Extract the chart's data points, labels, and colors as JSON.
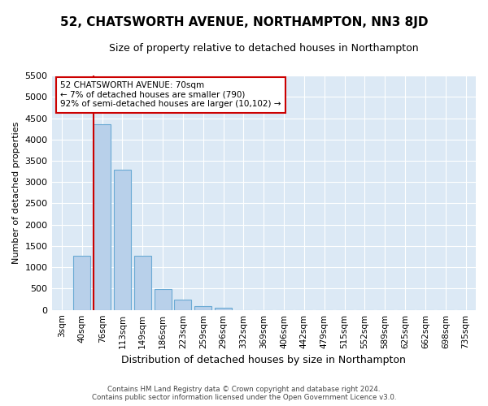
{
  "title": "52, CHATSWORTH AVENUE, NORTHAMPTON, NN3 8JD",
  "subtitle": "Size of property relative to detached houses in Northampton",
  "xlabel": "Distribution of detached houses by size in Northampton",
  "ylabel": "Number of detached properties",
  "bar_labels": [
    "3sqm",
    "40sqm",
    "76sqm",
    "113sqm",
    "149sqm",
    "186sqm",
    "223sqm",
    "259sqm",
    "296sqm",
    "332sqm",
    "369sqm",
    "406sqm",
    "442sqm",
    "479sqm",
    "515sqm",
    "552sqm",
    "589sqm",
    "625sqm",
    "662sqm",
    "698sqm",
    "735sqm"
  ],
  "bar_values": [
    0,
    1280,
    4350,
    3300,
    1270,
    480,
    240,
    90,
    55,
    0,
    0,
    0,
    0,
    0,
    0,
    0,
    0,
    0,
    0,
    0,
    0
  ],
  "bar_color": "#b8d0ea",
  "bar_edge_color": "#6aaad4",
  "ylim": [
    0,
    5500
  ],
  "vline_x_index": 2,
  "property_label": "52 CHATSWORTH AVENUE: 70sqm",
  "pct_smaller": "← 7% of detached houses are smaller (790)",
  "pct_larger": "92% of semi-detached houses are larger (10,102) →",
  "annotation_box_color": "#ffffff",
  "annotation_box_edge": "#cc0000",
  "vline_color": "#cc0000",
  "footnote1": "Contains HM Land Registry data © Crown copyright and database right 2024.",
  "footnote2": "Contains public sector information licensed under the Open Government Licence v3.0.",
  "background_color": "#ffffff",
  "plot_bg_color": "#dce9f5",
  "title_fontsize": 11,
  "subtitle_fontsize": 9,
  "ylabel_fontsize": 8,
  "xlabel_fontsize": 9,
  "ytick_fontsize": 8,
  "xtick_fontsize": 7.5
}
